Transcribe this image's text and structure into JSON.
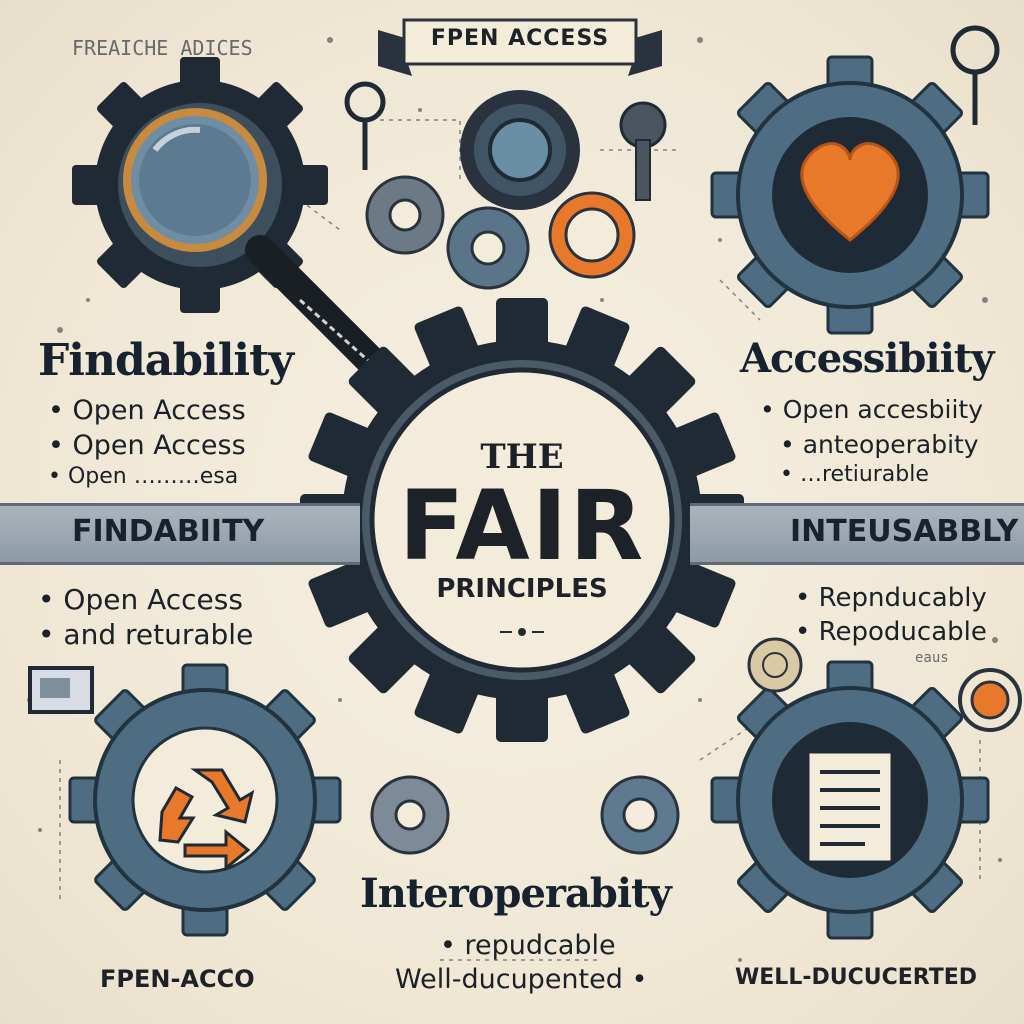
{
  "banner": {
    "text": "FPEN ACCESS"
  },
  "top_left_scribble": "FREAICHE ADICES",
  "findability": {
    "heading": "Findability",
    "bullets": [
      "Open Access",
      "Open Access",
      "Open ………esa"
    ]
  },
  "accessibility": {
    "heading": "Accessibiity",
    "bullets": [
      "Open accesbiity",
      "anteoperabity",
      "…retiurable"
    ]
  },
  "left_band": {
    "label": "FINDABIITY"
  },
  "right_band": {
    "label": "INTEUSABBLY"
  },
  "left_lower": {
    "bullets": [
      "Open Access",
      "and returable"
    ]
  },
  "right_lower": {
    "bullets": [
      "Repnducably",
      "Repoducable"
    ],
    "small": "eaus"
  },
  "center": {
    "line1": "THE",
    "line2": "FAIR",
    "line3": "PRINCIPLES"
  },
  "interoperability": {
    "heading": "Interoperabity",
    "bullets": [
      "repudcable",
      "Well-ducupented"
    ]
  },
  "bottom_left_label": "FPEN-ACCO",
  "bottom_right_label": "WELL-DUCUCERTED",
  "colors": {
    "accent": "#e8792b",
    "gear": "#4f6d82",
    "dark": "#1e2a36",
    "band": "#9aa6b0"
  },
  "icons": [
    "magnifier-icon",
    "heart-icon",
    "recycle-icon",
    "document-icon",
    "key-icon",
    "lightbulb-icon",
    "globe-icon"
  ]
}
